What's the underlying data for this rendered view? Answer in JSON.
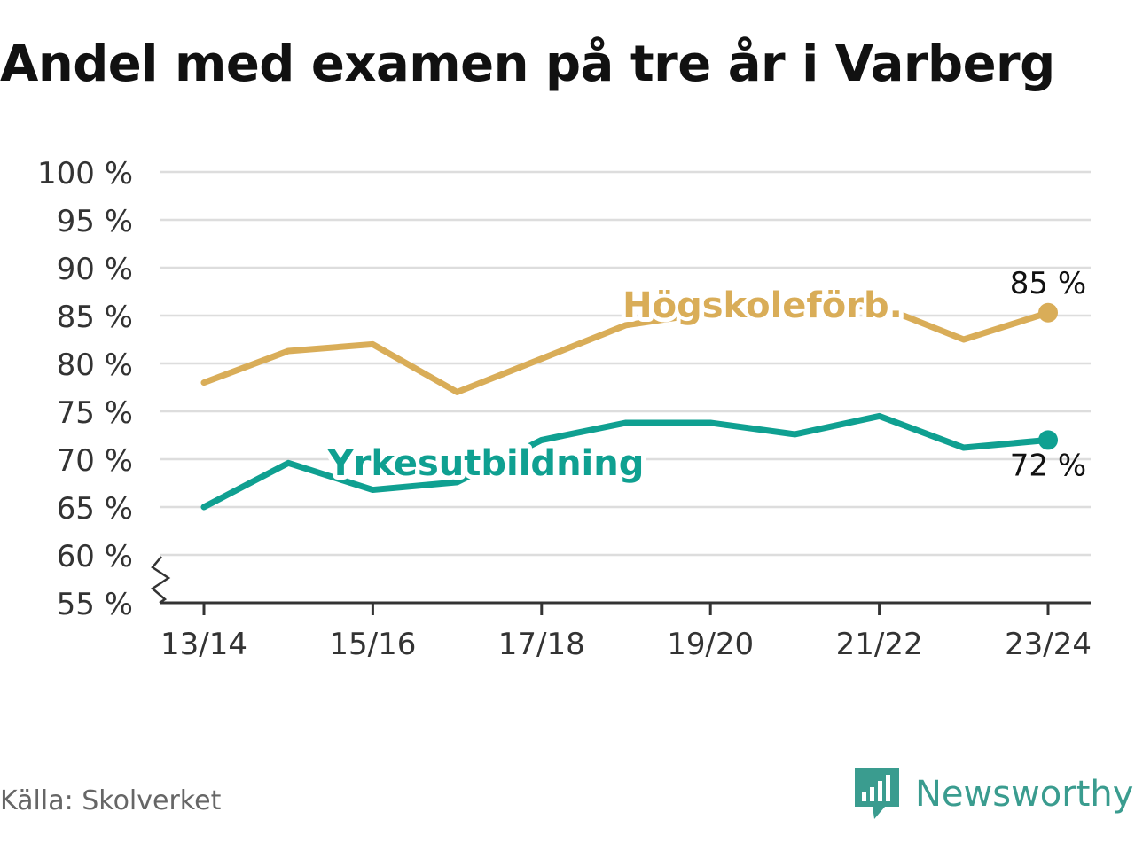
{
  "chart_data": {
    "type": "line",
    "title": "Andel med examen på tre år i Varberg",
    "categories": [
      "13/14",
      "14/15",
      "15/16",
      "16/17",
      "17/18",
      "18/19",
      "19/20",
      "20/21",
      "21/22",
      "22/23",
      "23/24"
    ],
    "x_tick_labels": [
      "13/14",
      "15/16",
      "17/18",
      "19/20",
      "21/22",
      "23/24"
    ],
    "y_tick_labels": [
      "55 %",
      "60 %",
      "65 %",
      "70 %",
      "75 %",
      "80 %",
      "85 %",
      "90 %",
      "95 %",
      "100 %"
    ],
    "ylim": [
      55,
      100
    ],
    "y_ticks": [
      55,
      60,
      65,
      70,
      75,
      80,
      85,
      90,
      95,
      100
    ],
    "grid": true,
    "axis_break": true,
    "series": [
      {
        "name": "Högskoleförb.",
        "color": "#d9ad58",
        "values": [
          78.0,
          81.3,
          82.0,
          77.0,
          80.5,
          84.0,
          85.3,
          85.8,
          86.0,
          82.5,
          85.3
        ],
        "end_label": "85 %"
      },
      {
        "name": "Yrkesutbildning",
        "color": "#0fa091",
        "values": [
          65.0,
          69.6,
          66.8,
          67.6,
          72.0,
          73.8,
          73.8,
          72.6,
          74.5,
          71.2,
          72.0
        ],
        "end_label": "72 %"
      }
    ]
  },
  "footer": {
    "source": "Källa: Skolverket",
    "brand": "Newsworthy",
    "brand_icon": "newsworthy-logo-icon",
    "brand_color": "#3a9c8f"
  }
}
